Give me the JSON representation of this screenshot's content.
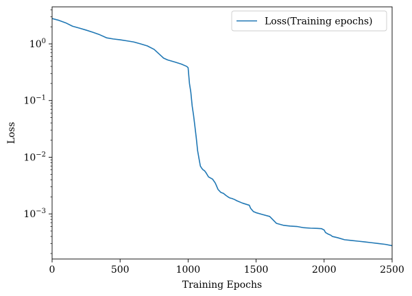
{
  "chart_data": {
    "type": "line",
    "title": "",
    "xlabel": "Training Epochs",
    "ylabel": "Loss",
    "xlim": [
      0,
      2500
    ],
    "ylim": [
      0.00016,
      4.5
    ],
    "yscale": "log",
    "grid": false,
    "legend_position": "top-right",
    "x_ticks": [
      {
        "value": 0,
        "label": "0"
      },
      {
        "value": 500,
        "label": "500"
      },
      {
        "value": 1000,
        "label": "1000"
      },
      {
        "value": 1500,
        "label": "1500"
      },
      {
        "value": 2000,
        "label": "2000"
      },
      {
        "value": 2500,
        "label": "2500"
      }
    ],
    "y_ticks": [
      {
        "value": 1,
        "base": "10",
        "exp": "0"
      },
      {
        "value": 0.1,
        "base": "10",
        "exp": "−1"
      },
      {
        "value": 0.01,
        "base": "10",
        "exp": "−2"
      },
      {
        "value": 0.001,
        "base": "10",
        "exp": "−3"
      }
    ],
    "series": [
      {
        "name": "Loss(Training epochs)",
        "color": "#1f77b4",
        "x": [
          0,
          50,
          100,
          150,
          200,
          250,
          300,
          350,
          400,
          450,
          500,
          550,
          600,
          650,
          700,
          750,
          800,
          820,
          850,
          900,
          950,
          990,
          1000,
          1010,
          1020,
          1030,
          1040,
          1050,
          1060,
          1070,
          1080,
          1090,
          1100,
          1110,
          1120,
          1130,
          1150,
          1180,
          1200,
          1220,
          1240,
          1260,
          1280,
          1300,
          1310,
          1320,
          1340,
          1360,
          1400,
          1450,
          1460,
          1480,
          1500,
          1550,
          1600,
          1650,
          1700,
          1750,
          1800,
          1850,
          1900,
          1950,
          1980,
          2000,
          2010,
          2030,
          2050,
          2060,
          2100,
          2150,
          2200,
          2250,
          2300,
          2350,
          2400,
          2450,
          2500
        ],
        "values": [
          2.8,
          2.6,
          2.35,
          2.05,
          1.9,
          1.75,
          1.6,
          1.45,
          1.28,
          1.22,
          1.18,
          1.13,
          1.08,
          1.0,
          0.92,
          0.8,
          0.62,
          0.56,
          0.52,
          0.48,
          0.44,
          0.4,
          0.38,
          0.2,
          0.14,
          0.08,
          0.055,
          0.035,
          0.022,
          0.013,
          0.0095,
          0.007,
          0.0064,
          0.006,
          0.0058,
          0.0054,
          0.0045,
          0.0041,
          0.0035,
          0.0027,
          0.0024,
          0.0023,
          0.0021,
          0.00195,
          0.0019,
          0.00188,
          0.0018,
          0.0017,
          0.00155,
          0.00142,
          0.00125,
          0.0011,
          0.00105,
          0.00097,
          0.0009,
          0.00068,
          0.00063,
          0.00061,
          0.0006,
          0.00057,
          0.00056,
          0.000555,
          0.00055,
          0.00052,
          0.00047,
          0.00044,
          0.00042,
          0.0004,
          0.00038,
          0.00035,
          0.00034,
          0.00033,
          0.00032,
          0.00031,
          0.0003,
          0.00029,
          0.000275
        ]
      }
    ]
  }
}
